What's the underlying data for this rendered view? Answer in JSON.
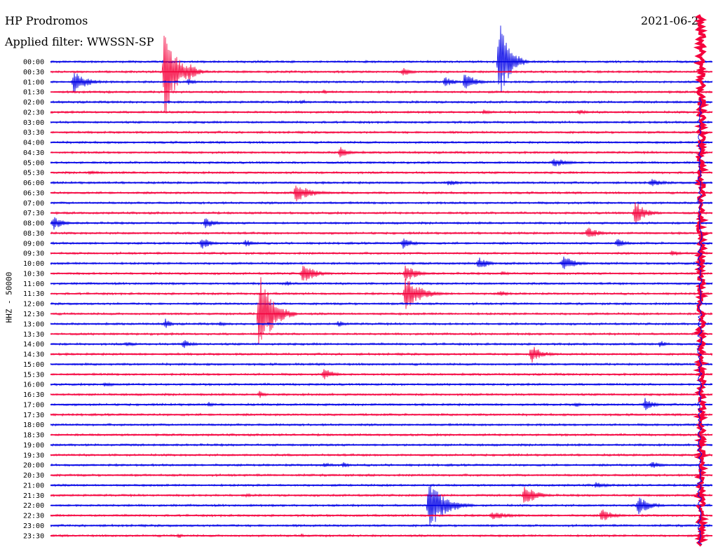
{
  "header": {
    "title": "HP Prodromos",
    "filter": "Applied filter: WWSSN-SP",
    "date": "2021-06-2"
  },
  "chart_data": {
    "type": "line",
    "ylabel": "HHZ - 50000",
    "times": [
      "00:00",
      "00:30",
      "01:00",
      "01:30",
      "02:00",
      "02:30",
      "03:00",
      "03:30",
      "04:00",
      "04:30",
      "05:00",
      "05:30",
      "06:00",
      "06:30",
      "07:00",
      "07:30",
      "08:00",
      "08:30",
      "09:00",
      "09:30",
      "10:00",
      "10:30",
      "11:00",
      "11:30",
      "12:00",
      "12:30",
      "13:00",
      "13:30",
      "14:00",
      "14:30",
      "15:00",
      "15:30",
      "16:00",
      "16:30",
      "17:00",
      "17:30",
      "18:00",
      "18:30",
      "19:00",
      "19:30",
      "20:00",
      "20:30",
      "21:00",
      "21:30",
      "22:00",
      "22:30",
      "23:00",
      "23:30"
    ],
    "colors": [
      "#0000e6",
      "#f5003c"
    ],
    "events": [
      {
        "row": 0,
        "x": 712,
        "amp": 60,
        "w": 14
      },
      {
        "row": 1,
        "x": 235,
        "amp": 70,
        "w": 16
      },
      {
        "row": 1,
        "x": 270,
        "amp": 14,
        "w": 12
      },
      {
        "row": 1,
        "x": 575,
        "amp": 6,
        "w": 14
      },
      {
        "row": 2,
        "x": 105,
        "amp": 16,
        "w": 18
      },
      {
        "row": 2,
        "x": 635,
        "amp": 8,
        "w": 14
      },
      {
        "row": 2,
        "x": 663,
        "amp": 14,
        "w": 14
      },
      {
        "row": 2,
        "x": 268,
        "amp": 5,
        "w": 12
      },
      {
        "row": 3,
        "x": 462,
        "amp": 4,
        "w": 6
      },
      {
        "row": 4,
        "x": 430,
        "amp": 4,
        "w": 10
      },
      {
        "row": 5,
        "x": 690,
        "amp": 4,
        "w": 10
      },
      {
        "row": 5,
        "x": 826,
        "amp": 5,
        "w": 10
      },
      {
        "row": 9,
        "x": 485,
        "amp": 9,
        "w": 12
      },
      {
        "row": 10,
        "x": 790,
        "amp": 7,
        "w": 20
      },
      {
        "row": 11,
        "x": 128,
        "amp": 4,
        "w": 12
      },
      {
        "row": 12,
        "x": 640,
        "amp": 5,
        "w": 16
      },
      {
        "row": 12,
        "x": 928,
        "amp": 6,
        "w": 18
      },
      {
        "row": 13,
        "x": 422,
        "amp": 13,
        "w": 22
      },
      {
        "row": 15,
        "x": 906,
        "amp": 18,
        "w": 14
      },
      {
        "row": 16,
        "x": 76,
        "amp": 10,
        "w": 14
      },
      {
        "row": 16,
        "x": 293,
        "amp": 8,
        "w": 14
      },
      {
        "row": 17,
        "x": 838,
        "amp": 9,
        "w": 16
      },
      {
        "row": 18,
        "x": 288,
        "amp": 9,
        "w": 12
      },
      {
        "row": 18,
        "x": 350,
        "amp": 6,
        "w": 12
      },
      {
        "row": 18,
        "x": 575,
        "amp": 9,
        "w": 14
      },
      {
        "row": 18,
        "x": 880,
        "amp": 7,
        "w": 14
      },
      {
        "row": 19,
        "x": 958,
        "amp": 6,
        "w": 10
      },
      {
        "row": 20,
        "x": 683,
        "amp": 10,
        "w": 12
      },
      {
        "row": 20,
        "x": 803,
        "amp": 12,
        "w": 16
      },
      {
        "row": 21,
        "x": 432,
        "amp": 16,
        "w": 16
      },
      {
        "row": 21,
        "x": 578,
        "amp": 13,
        "w": 16
      },
      {
        "row": 21,
        "x": 716,
        "amp": 4,
        "w": 10
      },
      {
        "row": 22,
        "x": 408,
        "amp": 4,
        "w": 10
      },
      {
        "row": 23,
        "x": 578,
        "amp": 24,
        "w": 22
      },
      {
        "row": 23,
        "x": 712,
        "amp": 5,
        "w": 14
      },
      {
        "row": 25,
        "x": 370,
        "amp": 60,
        "w": 18
      },
      {
        "row": 26,
        "x": 236,
        "amp": 8,
        "w": 8
      },
      {
        "row": 26,
        "x": 482,
        "amp": 5,
        "w": 12
      },
      {
        "row": 26,
        "x": 314,
        "amp": 4,
        "w": 10
      },
      {
        "row": 28,
        "x": 262,
        "amp": 7,
        "w": 12
      },
      {
        "row": 28,
        "x": 942,
        "amp": 6,
        "w": 8
      },
      {
        "row": 28,
        "x": 180,
        "amp": 4,
        "w": 14
      },
      {
        "row": 29,
        "x": 758,
        "amp": 14,
        "w": 14
      },
      {
        "row": 31,
        "x": 462,
        "amp": 9,
        "w": 14
      },
      {
        "row": 32,
        "x": 150,
        "amp": 4,
        "w": 14
      },
      {
        "row": 33,
        "x": 370,
        "amp": 6,
        "w": 8
      },
      {
        "row": 34,
        "x": 920,
        "amp": 10,
        "w": 12
      },
      {
        "row": 34,
        "x": 298,
        "amp": 4,
        "w": 8
      },
      {
        "row": 34,
        "x": 822,
        "amp": 4,
        "w": 8
      },
      {
        "row": 40,
        "x": 463,
        "amp": 4,
        "w": 12
      },
      {
        "row": 40,
        "x": 490,
        "amp": 5,
        "w": 8
      },
      {
        "row": 40,
        "x": 930,
        "amp": 6,
        "w": 14
      },
      {
        "row": 42,
        "x": 850,
        "amp": 5,
        "w": 16
      },
      {
        "row": 43,
        "x": 748,
        "amp": 16,
        "w": 16
      },
      {
        "row": 43,
        "x": 352,
        "amp": 3,
        "w": 10
      },
      {
        "row": 44,
        "x": 612,
        "amp": 36,
        "w": 22
      },
      {
        "row": 44,
        "x": 910,
        "amp": 14,
        "w": 16
      },
      {
        "row": 45,
        "x": 700,
        "amp": 6,
        "w": 30
      },
      {
        "row": 45,
        "x": 858,
        "amp": 10,
        "w": 16
      },
      {
        "row": 47,
        "x": 255,
        "amp": 4,
        "w": 8
      },
      {
        "row": 47,
        "x": 430,
        "amp": 3,
        "w": 6
      }
    ],
    "strong_column": {
      "x": 1000,
      "start_row": 0,
      "end_row": 47
    }
  }
}
